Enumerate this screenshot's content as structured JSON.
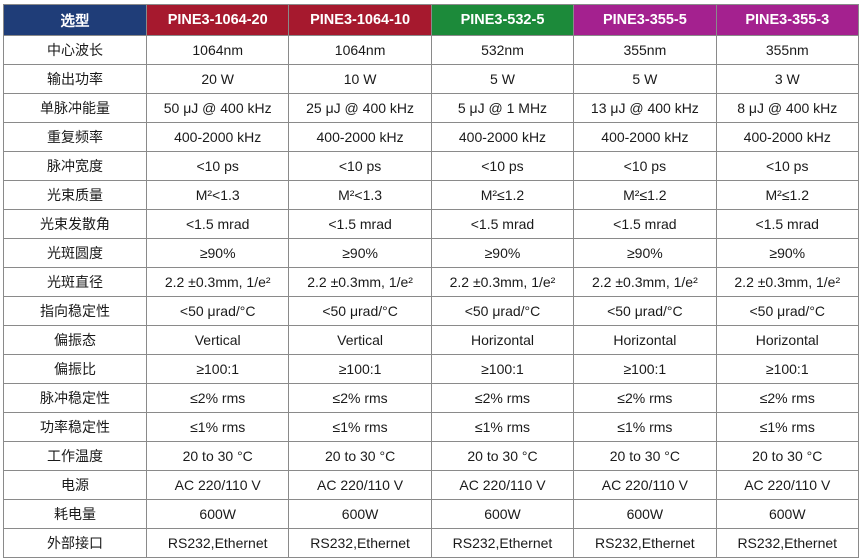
{
  "header": {
    "first": "选型",
    "models": [
      {
        "name": "PINE3-1064-20",
        "color": "#a6192e"
      },
      {
        "name": "PINE3-1064-10",
        "color": "#a6192e"
      },
      {
        "name": "PINE3-532-5",
        "color": "#1c8a3a"
      },
      {
        "name": "PINE3-355-5",
        "color": "#a4218f"
      },
      {
        "name": "PINE3-355-3",
        "color": "#a4218f"
      }
    ]
  },
  "rows": [
    {
      "label": "中心波长",
      "values": [
        "1064nm",
        "1064nm",
        "532nm",
        "355nm",
        "355nm"
      ]
    },
    {
      "label": "输出功率",
      "values": [
        "20 W",
        "10 W",
        "5 W",
        "5 W",
        "3 W"
      ]
    },
    {
      "label": "单脉冲能量",
      "values": [
        "50 μJ @ 400 kHz",
        "25 μJ @ 400 kHz",
        "5 μJ @ 1 MHz",
        "13 μJ @ 400 kHz",
        "8 μJ @ 400 kHz"
      ]
    },
    {
      "label": "重复频率",
      "values": [
        "400-2000 kHz",
        "400-2000 kHz",
        "400-2000 kHz",
        "400-2000 kHz",
        "400-2000 kHz"
      ]
    },
    {
      "label": "脉冲宽度",
      "values": [
        "<10 ps",
        "<10 ps",
        "<10 ps",
        "<10 ps",
        "<10 ps"
      ]
    },
    {
      "label": "光束质量",
      "values": [
        "M²<1.3",
        "M²<1.3",
        "M²≤1.2",
        "M²≤1.2",
        "M²≤1.2"
      ]
    },
    {
      "label": "光束发散角",
      "values": [
        "<1.5 mrad",
        "<1.5 mrad",
        "<1.5 mrad",
        "<1.5 mrad",
        "<1.5 mrad"
      ]
    },
    {
      "label": "光斑圆度",
      "values": [
        "≥90%",
        "≥90%",
        "≥90%",
        "≥90%",
        "≥90%"
      ]
    },
    {
      "label": "光斑直径",
      "values": [
        "2.2 ±0.3mm, 1/e²",
        "2.2 ±0.3mm, 1/e²",
        "2.2 ±0.3mm, 1/e²",
        "2.2 ±0.3mm, 1/e²",
        "2.2 ±0.3mm, 1/e²"
      ]
    },
    {
      "label": "指向稳定性",
      "values": [
        "<50 μrad/°C",
        "<50 μrad/°C",
        "<50 μrad/°C",
        "<50 μrad/°C",
        "<50 μrad/°C"
      ]
    },
    {
      "label": "偏振态",
      "values": [
        "Vertical",
        "Vertical",
        "Horizontal",
        "Horizontal",
        "Horizontal"
      ]
    },
    {
      "label": "偏振比",
      "values": [
        "≥100:1",
        "≥100:1",
        "≥100:1",
        "≥100:1",
        "≥100:1"
      ]
    },
    {
      "label": "脉冲稳定性",
      "values": [
        "≤2% rms",
        "≤2% rms",
        "≤2% rms",
        "≤2% rms",
        "≤2% rms"
      ]
    },
    {
      "label": "功率稳定性",
      "values": [
        "≤1% rms",
        "≤1% rms",
        "≤1% rms",
        "≤1% rms",
        "≤1% rms"
      ]
    },
    {
      "label": "工作温度",
      "values": [
        "20 to 30 °C",
        "20 to 30 °C",
        "20 to 30 °C",
        "20 to 30 °C",
        "20 to 30 °C"
      ]
    },
    {
      "label": "电源",
      "values": [
        "AC 220/110 V",
        "AC 220/110 V",
        "AC 220/110 V",
        "AC 220/110 V",
        "AC 220/110 V"
      ]
    },
    {
      "label": "耗电量",
      "values": [
        "600W",
        "600W",
        "600W",
        "600W",
        "600W"
      ]
    },
    {
      "label": "外部接口",
      "values": [
        "RS232,Ethernet",
        "RS232,Ethernet",
        "RS232,Ethernet",
        "RS232,Ethernet",
        "RS232,Ethernet"
      ]
    }
  ]
}
